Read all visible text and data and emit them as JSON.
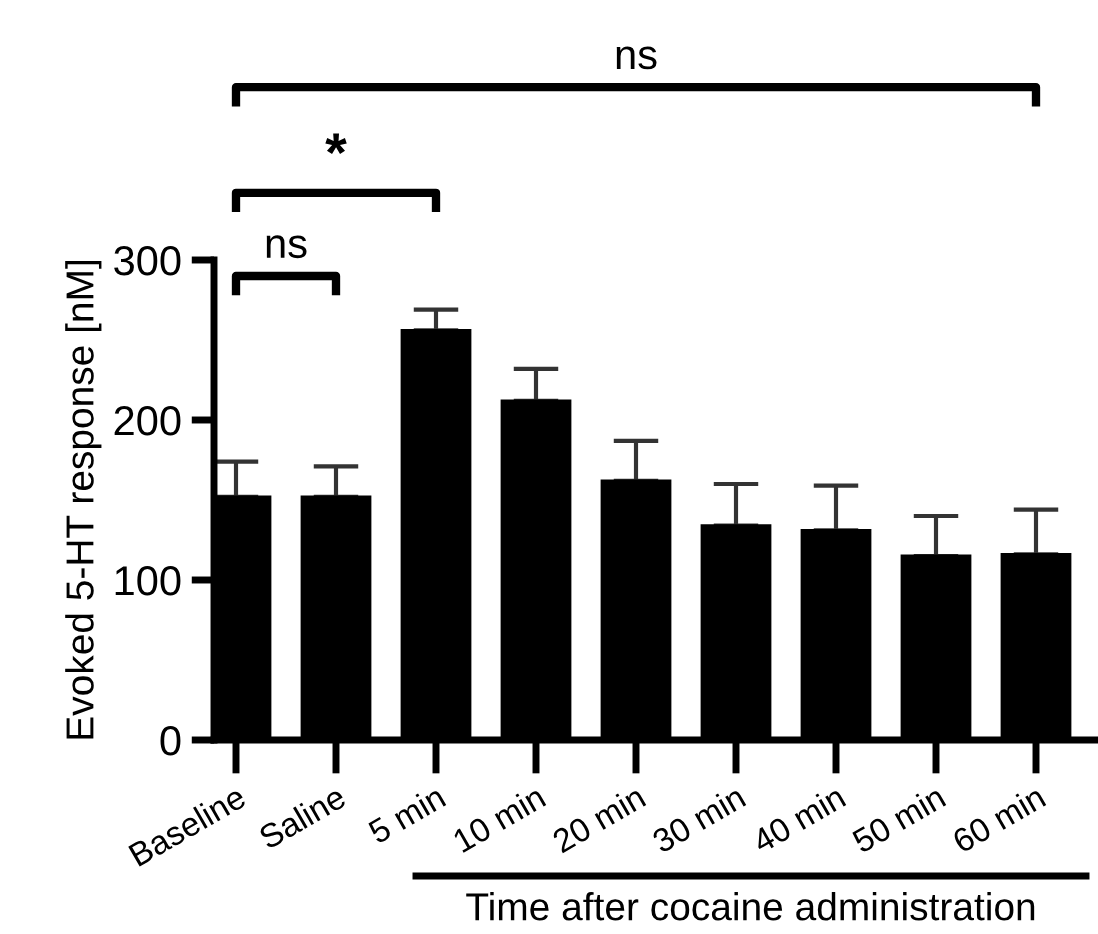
{
  "chart_data": {
    "type": "bar",
    "categories": [
      "Baseline",
      "Saline",
      "5 min",
      "10 min",
      "20 min",
      "30 min",
      "40 min",
      "50 min",
      "60 min"
    ],
    "values": [
      152,
      152,
      256,
      212,
      162,
      134,
      131,
      115,
      116
    ],
    "errors": [
      [
        152,
        174
      ],
      [
        152,
        171
      ],
      [
        256,
        269
      ],
      [
        212,
        232
      ],
      [
        162,
        187
      ],
      [
        134,
        160
      ],
      [
        131,
        159
      ],
      [
        115,
        140
      ],
      [
        116,
        144
      ]
    ],
    "color": "#000000",
    "ylabel": "Evoked 5-HT response [nM]",
    "xlabel": "Time after cocaine administration",
    "ylim": [
      0,
      300
    ],
    "yticks": [
      0,
      100,
      200,
      300
    ],
    "grid": false,
    "legend": false,
    "annotations": [
      "ns",
      "*",
      "ns"
    ]
  }
}
